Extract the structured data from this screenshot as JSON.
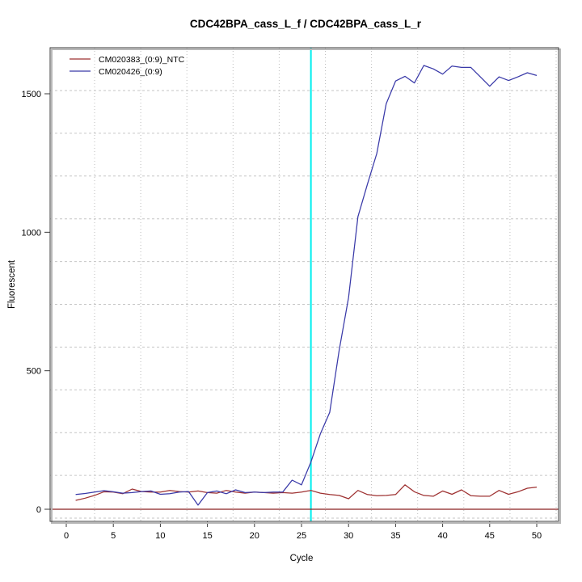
{
  "chart_data": {
    "type": "line",
    "title": "CDC42BPA_cass_L_f / CDC42BPA_cass_L_r",
    "xlabel": "Cycle",
    "ylabel": "Fluorescent",
    "x_ticks": [
      0,
      5,
      10,
      15,
      20,
      25,
      30,
      35,
      40,
      45,
      50
    ],
    "y_ticks": [
      0,
      500,
      1000,
      1500
    ],
    "xlim": [
      -1.8,
      52.3
    ],
    "ylim": [
      -45,
      1665
    ],
    "grid": "dotted light-gray, not aligned to ticks",
    "legend_position": "top-left inside plot, no frame",
    "threshold_line_y": 0,
    "threshold_line_color": "#8b2222",
    "threshold_cycle_x": 26,
    "threshold_cycle_color": "#00eeee",
    "x": [
      1,
      2,
      3,
      4,
      5,
      6,
      7,
      8,
      9,
      10,
      11,
      12,
      13,
      14,
      15,
      16,
      17,
      18,
      19,
      20,
      21,
      22,
      23,
      24,
      25,
      26,
      27,
      28,
      29,
      30,
      31,
      32,
      33,
      34,
      35,
      36,
      37,
      38,
      39,
      40,
      41,
      42,
      43,
      44,
      45,
      46,
      47,
      48,
      49,
      50
    ],
    "series": [
      {
        "name": "CM020383_(0:9)_NTC",
        "color": "#9e3131",
        "values": [
          32,
          40,
          50,
          63,
          62,
          56,
          73,
          64,
          62,
          62,
          68,
          64,
          62,
          66,
          60,
          58,
          68,
          62,
          58,
          62,
          60,
          58,
          60,
          58,
          62,
          68,
          58,
          53,
          50,
          38,
          68,
          53,
          49,
          50,
          53,
          88,
          63,
          50,
          47,
          66,
          54,
          70,
          49,
          47,
          47,
          68,
          54,
          63,
          76,
          80
        ]
      },
      {
        "name": "CM020426_(0:9)",
        "color": "#3939a8",
        "values": [
          53,
          57,
          62,
          67,
          63,
          58,
          60,
          64,
          66,
          54,
          56,
          62,
          64,
          15,
          60,
          66,
          56,
          70,
          60,
          62,
          60,
          62,
          62,
          105,
          88,
          170,
          272,
          350,
          574,
          764,
          1056,
          1173,
          1284,
          1464,
          1546,
          1563,
          1539,
          1602,
          1590,
          1571,
          1600,
          1595,
          1595,
          1561,
          1527,
          1561,
          1548,
          1561,
          1576,
          1566
        ]
      }
    ]
  }
}
